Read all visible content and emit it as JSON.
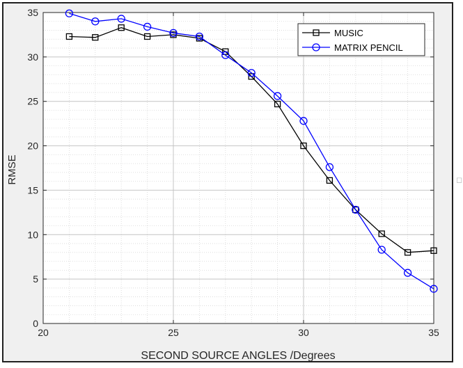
{
  "chart_data": {
    "type": "line",
    "title": "",
    "xlabel": "SECOND SOURCE ANGLES /Degrees",
    "ylabel": "RMSE",
    "xlim": [
      20,
      35
    ],
    "ylim": [
      0,
      35
    ],
    "xticks": [
      20,
      25,
      30,
      35
    ],
    "yticks": [
      0,
      5,
      10,
      15,
      20,
      25,
      30,
      35
    ],
    "grid": true,
    "minor_grid": true,
    "legend_position": "top-right",
    "x": [
      21,
      22,
      23,
      24,
      25,
      26,
      27,
      28,
      29,
      30,
      31,
      32,
      33,
      34,
      35
    ],
    "series": [
      {
        "name": "MUSIC",
        "color": "#000000",
        "marker": "square",
        "values": [
          32.3,
          32.2,
          33.3,
          32.3,
          32.5,
          32.1,
          30.6,
          27.8,
          24.7,
          20.0,
          16.1,
          12.8,
          10.1,
          8.0,
          8.2
        ]
      },
      {
        "name": "MATRIX PENCIL",
        "color": "#0000ff",
        "marker": "circle",
        "values": [
          34.9,
          34.0,
          34.3,
          33.4,
          32.7,
          32.3,
          30.2,
          28.2,
          25.6,
          22.8,
          17.6,
          12.8,
          8.3,
          5.7,
          3.9
        ]
      }
    ]
  }
}
